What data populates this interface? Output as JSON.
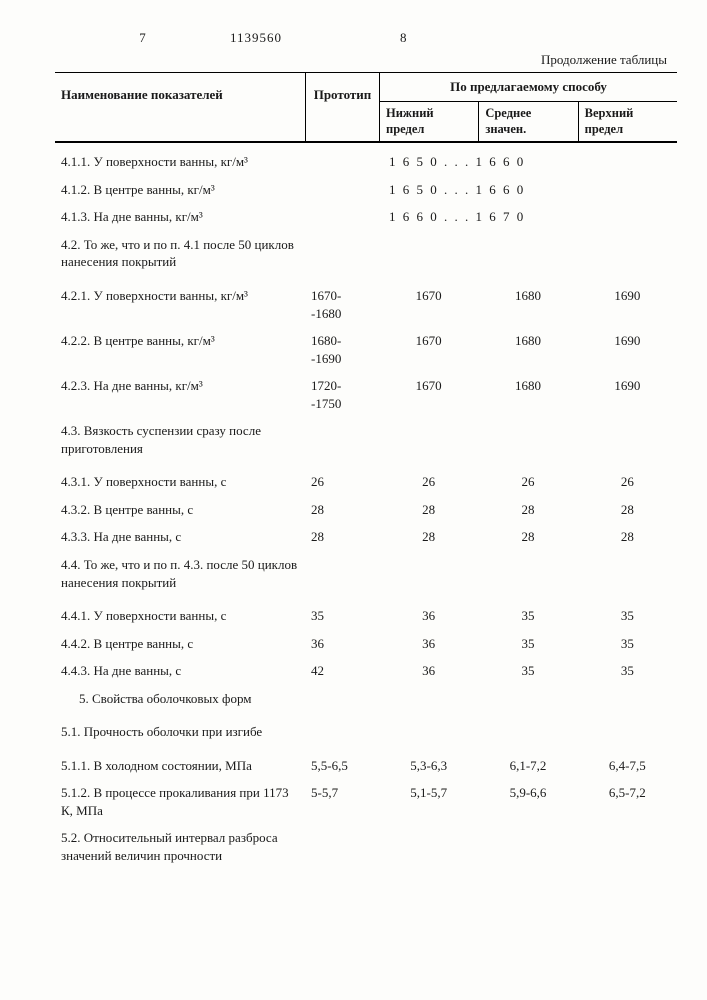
{
  "pageLeft": "7",
  "docNumber": "1139560",
  "pageRight": "8",
  "continuation": "Продолжение таблицы",
  "header": {
    "name": "Наименование показателей",
    "proto": "Прототип",
    "method": "По предлагаемому способу",
    "lower": "Нижний предел",
    "mid": "Среднее значен.",
    "upper": "Верхний предел"
  },
  "rows": [
    {
      "lbl": "4.1.1. У поверхности ванны, кг/м³",
      "span3": "1 6 5 0 . . . 1 6 6 0"
    },
    {
      "lbl": "4.1.2. В центре ванны, кг/м³",
      "span3": "1 6 5 0 . . . 1 6 6 0"
    },
    {
      "lbl": "4.1.3. На дне ванны, кг/м³",
      "span3": "1 6 6 0 . . . 1 6 7 0"
    },
    {
      "lbl": "4.2. То же, что и по п. 4.1 после 50 циклов нанесения покрытий",
      "multi": true
    },
    {
      "lbl": "4.2.1. У поверхности ванны, кг/м³",
      "proto": "1670-\n-1680",
      "c1": "1670",
      "c2": "1680",
      "c3": "1690"
    },
    {
      "lbl": "4.2.2. В центре ванны, кг/м³",
      "proto": "1680-\n-1690",
      "c1": "1670",
      "c2": "1680",
      "c3": "1690"
    },
    {
      "lbl": "4.2.3. На дне ванны, кг/м³",
      "proto": "1720-\n-1750",
      "c1": "1670",
      "c2": "1680",
      "c3": "1690"
    },
    {
      "lbl": "4.3. Вязкость суспензии сразу после приготовления",
      "multi": true
    },
    {
      "lbl": "4.3.1. У поверхности ванны, с",
      "proto": "26",
      "c1": "26",
      "c2": "26",
      "c3": "26"
    },
    {
      "lbl": "4.3.2. В центре ванны, с",
      "proto": "28",
      "c1": "28",
      "c2": "28",
      "c3": "28"
    },
    {
      "lbl": "4.3.3. На дне ванны, с",
      "proto": "28",
      "c1": "28",
      "c2": "28",
      "c3": "28"
    },
    {
      "lbl": "4.4. То же, что и по п. 4.3. после 50 циклов нанесения покрытий",
      "multi": true
    },
    {
      "lbl": "4.4.1. У поверхности ванны, с",
      "proto": "35",
      "c1": "36",
      "c2": "35",
      "c3": "35"
    },
    {
      "lbl": "4.4.2. В центре ванны, с",
      "proto": "36",
      "c1": "36",
      "c2": "35",
      "c3": "35"
    },
    {
      "lbl": "4.4.3. На дне  ванны, с",
      "proto": "42",
      "c1": "36",
      "c2": "35",
      "c3": "35"
    },
    {
      "lbl": "5. Свойства оболочковых форм",
      "multi": true,
      "indent": true
    },
    {
      "lbl": "5.1. Прочность оболочки при изгибе",
      "multi": true
    },
    {
      "lbl": "5.1.1. В холодном состоянии, МПа",
      "proto": "5,5-6,5",
      "c1": "5,3-6,3",
      "c2": "6,1-7,2",
      "c3": "6,4-7,5"
    },
    {
      "lbl": "5.1.2. В процессе прокаливания при 1173 К, МПа",
      "proto": "5-5,7",
      "c1": "5,1-5,7",
      "c2": "5,9-6,6",
      "c3": "6,5-7,2"
    },
    {
      "lbl": "5.2. Относительный интервал разброса значений величин прочности",
      "multi": true
    }
  ]
}
